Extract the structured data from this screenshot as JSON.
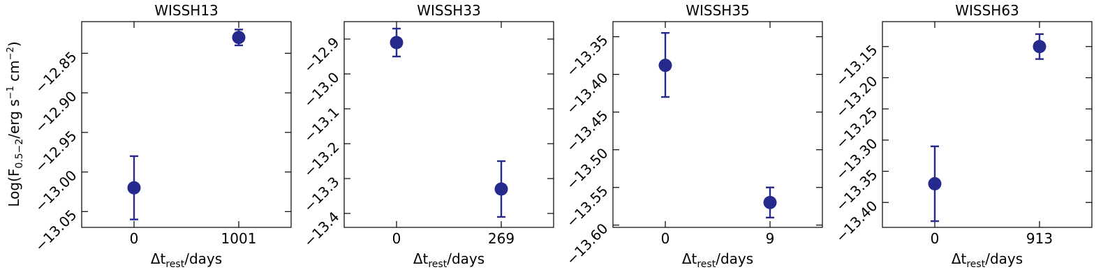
{
  "chart_data": [
    {
      "type": "scatter",
      "title": "WISSH13",
      "xlabel": "Δt_rest/days",
      "ylabel": "Log(F_0.5−2/erg s^−1 cm^−2)",
      "categories": [
        "0",
        "1001"
      ],
      "y": [
        -13.02,
        -12.83
      ],
      "yerr_low": [
        -13.06,
        -12.84
      ],
      "yerr_high": [
        -12.98,
        -12.82
      ],
      "ylim": [
        -13.07,
        -12.81
      ],
      "yticks": [
        -12.85,
        -12.9,
        -12.95,
        -13.0,
        -13.05
      ],
      "ytick_labels": [
        "−12.85",
        "−12.90",
        "−12.95",
        "−13.00",
        "−13.05"
      ],
      "color": "#262a8c"
    },
    {
      "type": "scatter",
      "title": "WISSH33",
      "xlabel": "Δt_rest/days",
      "ylabel": "",
      "categories": [
        "0",
        "269"
      ],
      "y": [
        -12.91,
        -13.33
      ],
      "yerr_low": [
        -12.95,
        -13.41
      ],
      "yerr_high": [
        -12.87,
        -13.25
      ],
      "ylim": [
        -13.44,
        -12.85
      ],
      "yticks": [
        -12.9,
        -13.0,
        -13.1,
        -13.2,
        -13.3,
        -13.4
      ],
      "ytick_labels": [
        "−12.9",
        "−13.0",
        "−13.1",
        "−13.2",
        "−13.3",
        "−13.4"
      ],
      "color": "#262a8c"
    },
    {
      "type": "scatter",
      "title": "WISSH35",
      "xlabel": "Δt_rest/days",
      "ylabel": "",
      "categories": [
        "0",
        "9"
      ],
      "y": [
        -13.388,
        -13.57
      ],
      "yerr_low": [
        -13.43,
        -13.59
      ],
      "yerr_high": [
        -13.345,
        -13.55
      ],
      "ylim": [
        -13.603,
        -13.33
      ],
      "yticks": [
        -13.35,
        -13.4,
        -13.45,
        -13.5,
        -13.55,
        -13.6
      ],
      "ytick_labels": [
        "−13.35",
        "−13.40",
        "−13.45",
        "−13.50",
        "−13.55",
        "−13.60"
      ],
      "color": "#262a8c"
    },
    {
      "type": "scatter",
      "title": "WISSH63",
      "xlabel": "Δt_rest/days",
      "ylabel": "",
      "categories": [
        "0",
        "913"
      ],
      "y": [
        -13.37,
        -13.15
      ],
      "yerr_low": [
        -13.43,
        -13.17
      ],
      "yerr_high": [
        -13.31,
        -13.13
      ],
      "ylim": [
        -13.44,
        -13.11
      ],
      "yticks": [
        -13.15,
        -13.2,
        -13.25,
        -13.3,
        -13.35,
        -13.4
      ],
      "ytick_labels": [
        "−13.15",
        "−13.20",
        "−13.25",
        "−13.30",
        "−13.35",
        "−13.40"
      ],
      "color": "#262a8c"
    }
  ]
}
